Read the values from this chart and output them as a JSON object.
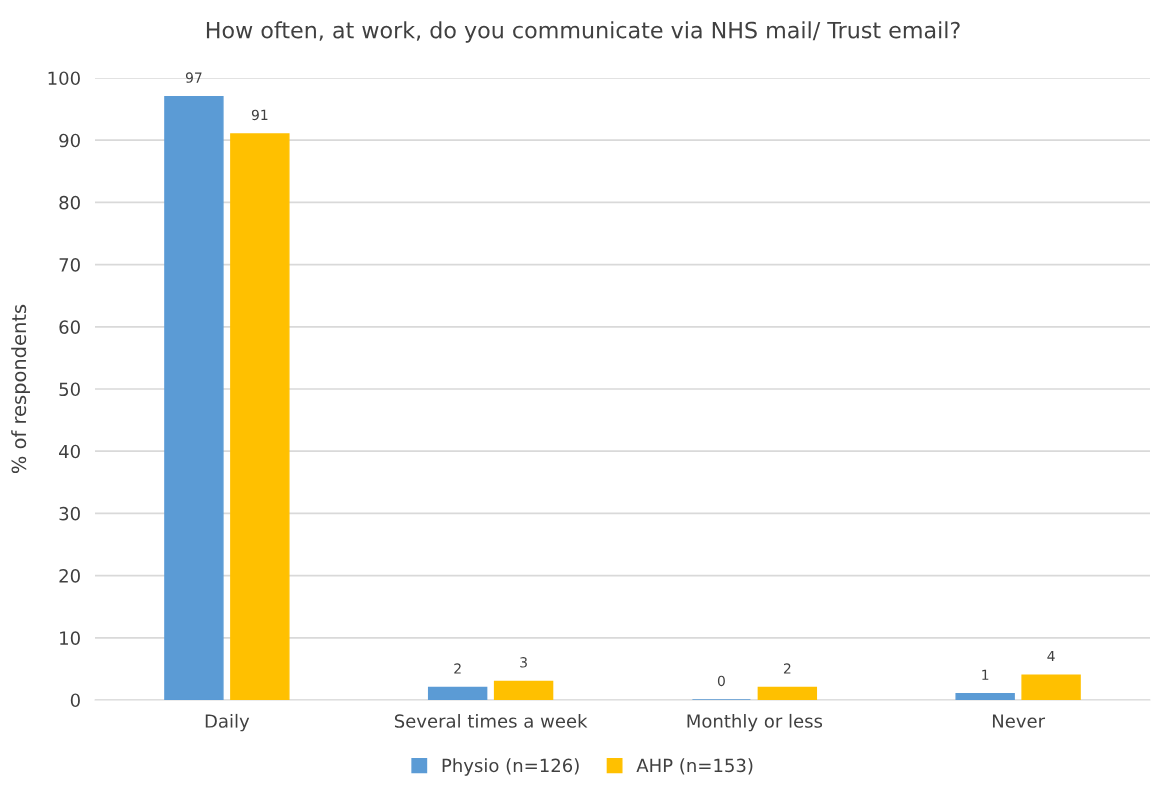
{
  "chart_data": {
    "type": "bar",
    "title": "How often, at work, do you communicate via NHS mail/ Trust email?",
    "ylabel": "% of respondents",
    "categories": [
      "Daily",
      "Several times a week",
      "Monthly or less",
      "Never"
    ],
    "series": [
      {
        "name": "Physio (n=126)",
        "color": "#5b9bd5",
        "values": [
          97,
          2,
          0,
          1
        ]
      },
      {
        "name": "AHP (n=153)",
        "color": "#ffc000",
        "values": [
          91,
          3,
          2,
          4
        ]
      }
    ],
    "ylim": [
      0,
      100
    ],
    "yticks": [
      0,
      10,
      20,
      30,
      40,
      50,
      60,
      70,
      80,
      90,
      100
    ],
    "grid": "y",
    "legend": "bottom",
    "data_labels": true
  }
}
